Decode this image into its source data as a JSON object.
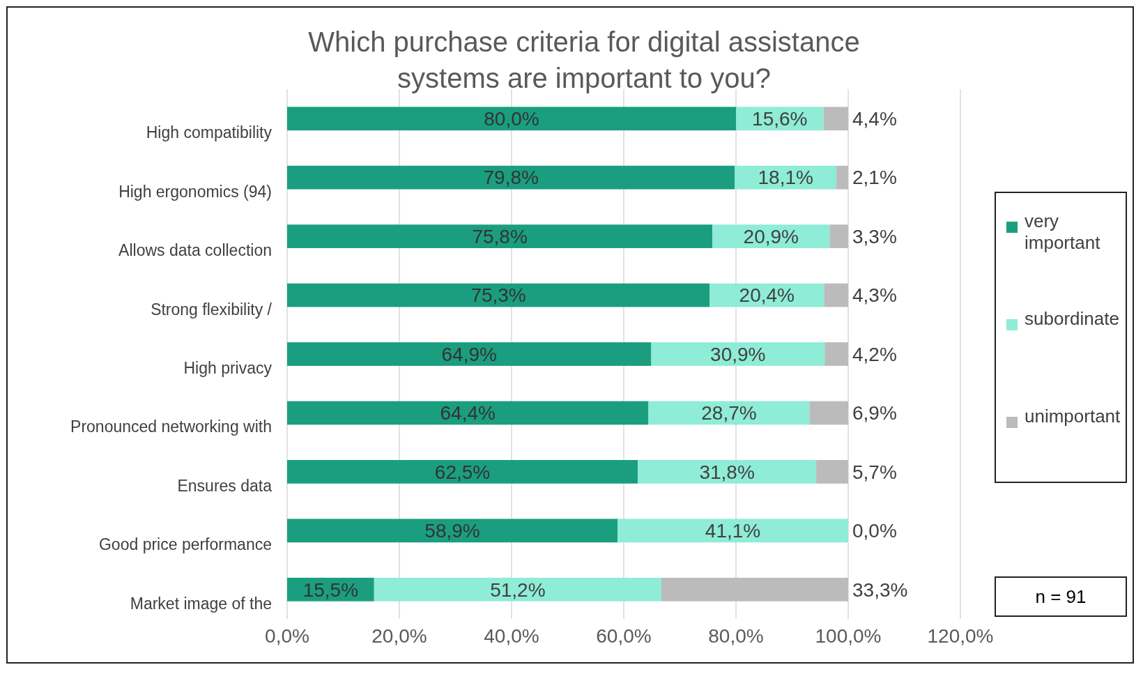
{
  "chart_data": {
    "type": "bar",
    "orientation": "horizontal",
    "stacked": true,
    "title": "Which purchase criteria for digital assistance systems are important to you?",
    "categories": [
      "High compatibility",
      "High ergonomics (94)",
      "Allows data collection",
      "Strong flexibility /",
      "High privacy",
      "Pronounced networking with",
      "Ensures data",
      "Good price performance",
      "Market image of the"
    ],
    "series": [
      {
        "name": "very important",
        "color": "#1a9e7f",
        "values": [
          80.0,
          79.8,
          75.8,
          75.3,
          64.9,
          64.4,
          62.5,
          58.9,
          15.5
        ],
        "value_labels": [
          "80,0%",
          "79,8%",
          "75,8%",
          "75,3%",
          "64,9%",
          "64,4%",
          "62,5%",
          "58,9%",
          "15,5%"
        ]
      },
      {
        "name": "subordinate",
        "color": "#8eecd7",
        "values": [
          15.6,
          18.1,
          20.9,
          20.4,
          30.9,
          28.7,
          31.8,
          41.1,
          51.2
        ],
        "value_labels": [
          "15,6%",
          "18,1%",
          "20,9%",
          "20,4%",
          "30,9%",
          "28,7%",
          "31,8%",
          "41,1%",
          "51,2%"
        ]
      },
      {
        "name": "unimportant",
        "color": "#bbbbbb",
        "values": [
          4.4,
          2.1,
          3.3,
          4.3,
          4.2,
          6.9,
          5.7,
          0.0,
          33.3
        ],
        "value_labels": [
          "4,4%",
          "2,1%",
          "3,3%",
          "4,3%",
          "4,2%",
          "6,9%",
          "5,7%",
          "0,0%",
          "33,3%"
        ]
      }
    ],
    "xlim": [
      0,
      120
    ],
    "xticks": [
      {
        "value": 0,
        "label": "0,0%"
      },
      {
        "value": 20,
        "label": "20,0%"
      },
      {
        "value": 40,
        "label": "40,0%"
      },
      {
        "value": 60,
        "label": "60,0%"
      },
      {
        "value": 80,
        "label": "80,0%"
      },
      {
        "value": 100,
        "label": "100,0%"
      },
      {
        "value": 120,
        "label": "120,0%"
      }
    ],
    "grid": "x",
    "legend": "right",
    "annotations": [
      "n = 91"
    ]
  }
}
